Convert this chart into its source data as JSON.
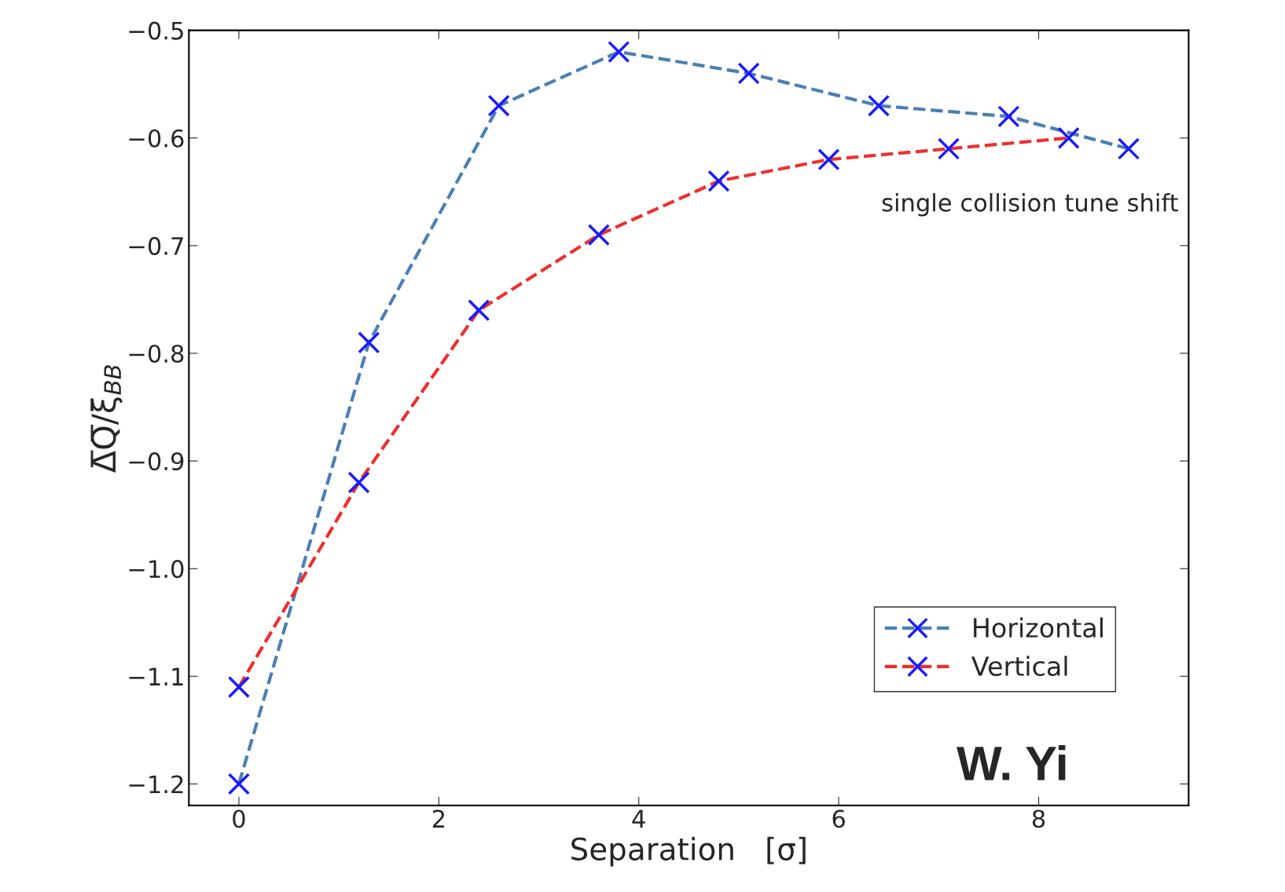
{
  "chart_data": {
    "type": "line",
    "xlabel": "Separation   [σ]",
    "ylabel": "Δ̅Q̅/ξ$_{BB}$",
    "xlim": [
      -0.5,
      9.5
    ],
    "xticks": [
      0,
      2,
      4,
      6,
      8
    ],
    "ylim": [
      -1.22,
      -0.5
    ],
    "yticks": [
      {
        "value": -1.2,
        "label": "−1.2"
      },
      {
        "value": -1.1,
        "label": "−1.1"
      },
      {
        "value": -1.0,
        "label": "−1.0"
      },
      {
        "value": -0.9,
        "label": "−0.9"
      },
      {
        "value": -0.8,
        "label": "−0.8"
      },
      {
        "value": -0.7,
        "label": "−0.7"
      },
      {
        "value": -0.6,
        "label": "−0.6"
      },
      {
        "value": -0.5,
        "label": "−0.5"
      }
    ],
    "marker": "cross",
    "line_style": "dashed",
    "grid": false,
    "legend": "bottom right",
    "series": [
      {
        "name": "Horizontal",
        "color": "#4a7fb5",
        "colors": [
          "#1a1aff",
          "#1a1aff",
          "#1a1aff",
          "#1a1aff",
          "#1a1aff",
          "#1a1aff",
          "#1a1aff",
          "#1a1aff"
        ],
        "x": [
          0,
          1.3,
          2.6,
          3.8,
          5.1,
          6.4,
          7.7,
          8.9
        ],
        "values": [
          -1.2,
          -0.79,
          -0.57,
          -0.52,
          -0.54,
          -0.57,
          -0.58,
          -0.61
        ]
      },
      {
        "name": "Vertical",
        "color": "#ee2e2e",
        "colors": [
          "#1a1aff",
          "#1a1aff",
          "#1a1aff",
          "#1a1aff",
          "#1a1aff",
          "#1a1aff",
          "#1a1aff",
          "#1a1aff"
        ],
        "x": [
          0,
          1.2,
          2.4,
          3.6,
          4.8,
          5.9,
          7.1,
          8.3
        ],
        "values": [
          -1.11,
          -0.92,
          -0.76,
          -0.69,
          -0.64,
          -0.62,
          -0.61,
          -0.6
        ]
      }
    ],
    "annotations": [
      "single collision tune shift",
      "W. Yi"
    ]
  }
}
